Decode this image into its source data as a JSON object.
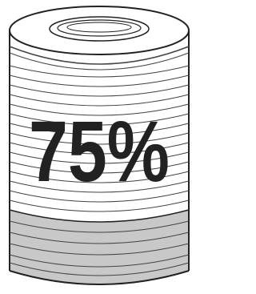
{
  "label": "75%"
}
